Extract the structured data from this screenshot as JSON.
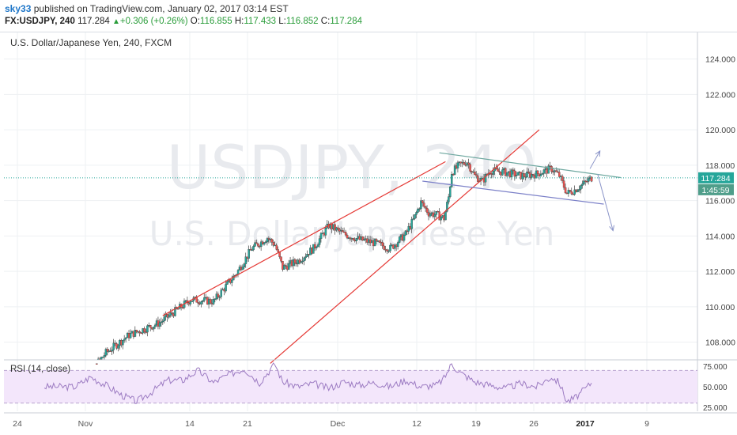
{
  "header": {
    "user": "sky33",
    "published_text": "published on TradingView.com, January 02, 2017 03:14 EST",
    "symbol": "FX:USDJPY, 240",
    "last": "117.284",
    "change": "+0.306 (+0.26%)",
    "open_label": "O:",
    "open": "116.855",
    "high_label": "H:",
    "high": "117.433",
    "low_label": "L:",
    "low": "116.852",
    "close_label": "C:",
    "close": "117.284"
  },
  "chart_data": {
    "type": "candlestick",
    "title": "U.S. Dollar/Japanese Yen, 240, FXCM",
    "watermark": {
      "symbol": "USDJPY, 240",
      "name": "U.S. Dollar/Japanese Yen"
    },
    "ylim": [
      107.0,
      125.5
    ],
    "yticks": [
      "124.000",
      "122.000",
      "120.000",
      "118.000",
      "116.000",
      "114.000",
      "112.000",
      "110.000",
      "108.000"
    ],
    "xticks": [
      "24",
      "Nov",
      "14",
      "21",
      "Dec",
      "12",
      "19",
      "26",
      "2017",
      "9"
    ],
    "price_label": "117.284",
    "countdown_label": "1:45:59",
    "close_anchors": [
      [
        0,
        105.3
      ],
      [
        40,
        107.4
      ],
      [
        70,
        108.4
      ],
      [
        110,
        109.1
      ],
      [
        150,
        110.4
      ],
      [
        180,
        110.3
      ],
      [
        210,
        111.9
      ],
      [
        230,
        113.3
      ],
      [
        250,
        113.9
      ],
      [
        260,
        113.5
      ],
      [
        270,
        112.2
      ],
      [
        290,
        112.6
      ],
      [
        310,
        113.3
      ],
      [
        330,
        114.6
      ],
      [
        350,
        114.1
      ],
      [
        370,
        113.8
      ],
      [
        390,
        113.6
      ],
      [
        410,
        113.3
      ],
      [
        430,
        114.1
      ],
      [
        440,
        114.9
      ],
      [
        450,
        115.9
      ],
      [
        460,
        115.3
      ],
      [
        470,
        115.2
      ],
      [
        480,
        115.0
      ],
      [
        486,
        116.2
      ],
      [
        490,
        117.6
      ],
      [
        500,
        118.0
      ],
      [
        510,
        118.2
      ],
      [
        520,
        117.4
      ],
      [
        530,
        117.1
      ],
      [
        540,
        117.7
      ],
      [
        560,
        117.6
      ],
      [
        580,
        117.4
      ],
      [
        600,
        117.5
      ],
      [
        620,
        117.8
      ],
      [
        630,
        117.4
      ],
      [
        640,
        116.4
      ],
      [
        650,
        116.6
      ],
      [
        660,
        116.9
      ],
      [
        672,
        117.28
      ]
    ],
    "trendlines": [
      {
        "color": "#e53935",
        "points": [
          [
            114,
            109.5
          ],
          [
            482,
            118.2
          ]
        ]
      },
      {
        "color": "#e53935",
        "points": [
          [
            254,
            106.8
          ],
          [
            604,
            120.0
          ]
        ]
      },
      {
        "color": "#6ea8a0",
        "points": [
          [
            474,
            118.7
          ],
          [
            710,
            117.3
          ]
        ]
      },
      {
        "color": "#7b80c8",
        "points": [
          [
            452,
            117.1
          ],
          [
            688,
            115.8
          ]
        ]
      }
    ],
    "arrows": [
      {
        "color": "#8a94c8",
        "points": [
          [
            670,
            117.8
          ],
          [
            683,
            118.8
          ]
        ]
      },
      {
        "color": "#8a94c8",
        "points": [
          [
            680,
            117.5
          ],
          [
            700,
            114.3
          ]
        ]
      }
    ],
    "indicator": {
      "title": "RSI (14, close)",
      "ylim": [
        20,
        80
      ],
      "yticks": [
        "75.000",
        "50.000",
        "25.000"
      ],
      "band": [
        30,
        70
      ],
      "anchors": [
        [
          0,
          50
        ],
        [
          20,
          62
        ],
        [
          40,
          52
        ],
        [
          60,
          40
        ],
        [
          80,
          32
        ],
        [
          100,
          44
        ],
        [
          120,
          58
        ],
        [
          140,
          58
        ],
        [
          160,
          70
        ],
        [
          180,
          55
        ],
        [
          200,
          65
        ],
        [
          220,
          72
        ],
        [
          240,
          55
        ],
        [
          260,
          78
        ],
        [
          270,
          56
        ],
        [
          290,
          50
        ],
        [
          310,
          54
        ],
        [
          330,
          48
        ],
        [
          350,
          56
        ],
        [
          370,
          52
        ],
        [
          390,
          55
        ],
        [
          410,
          50
        ],
        [
          430,
          58
        ],
        [
          450,
          50
        ],
        [
          470,
          52
        ],
        [
          480,
          60
        ],
        [
          490,
          78
        ],
        [
          500,
          68
        ],
        [
          520,
          56
        ],
        [
          540,
          52
        ],
        [
          560,
          48
        ],
        [
          580,
          54
        ],
        [
          600,
          50
        ],
        [
          620,
          62
        ],
        [
          630,
          55
        ],
        [
          640,
          32
        ],
        [
          650,
          36
        ],
        [
          660,
          44
        ],
        [
          672,
          55
        ]
      ]
    }
  },
  "colors": {
    "up": "#26a69a",
    "down": "#ef5350",
    "grid": "#eef0f3",
    "rsi": "#9c7bc2",
    "rsi_band": "#f3e6fb"
  }
}
